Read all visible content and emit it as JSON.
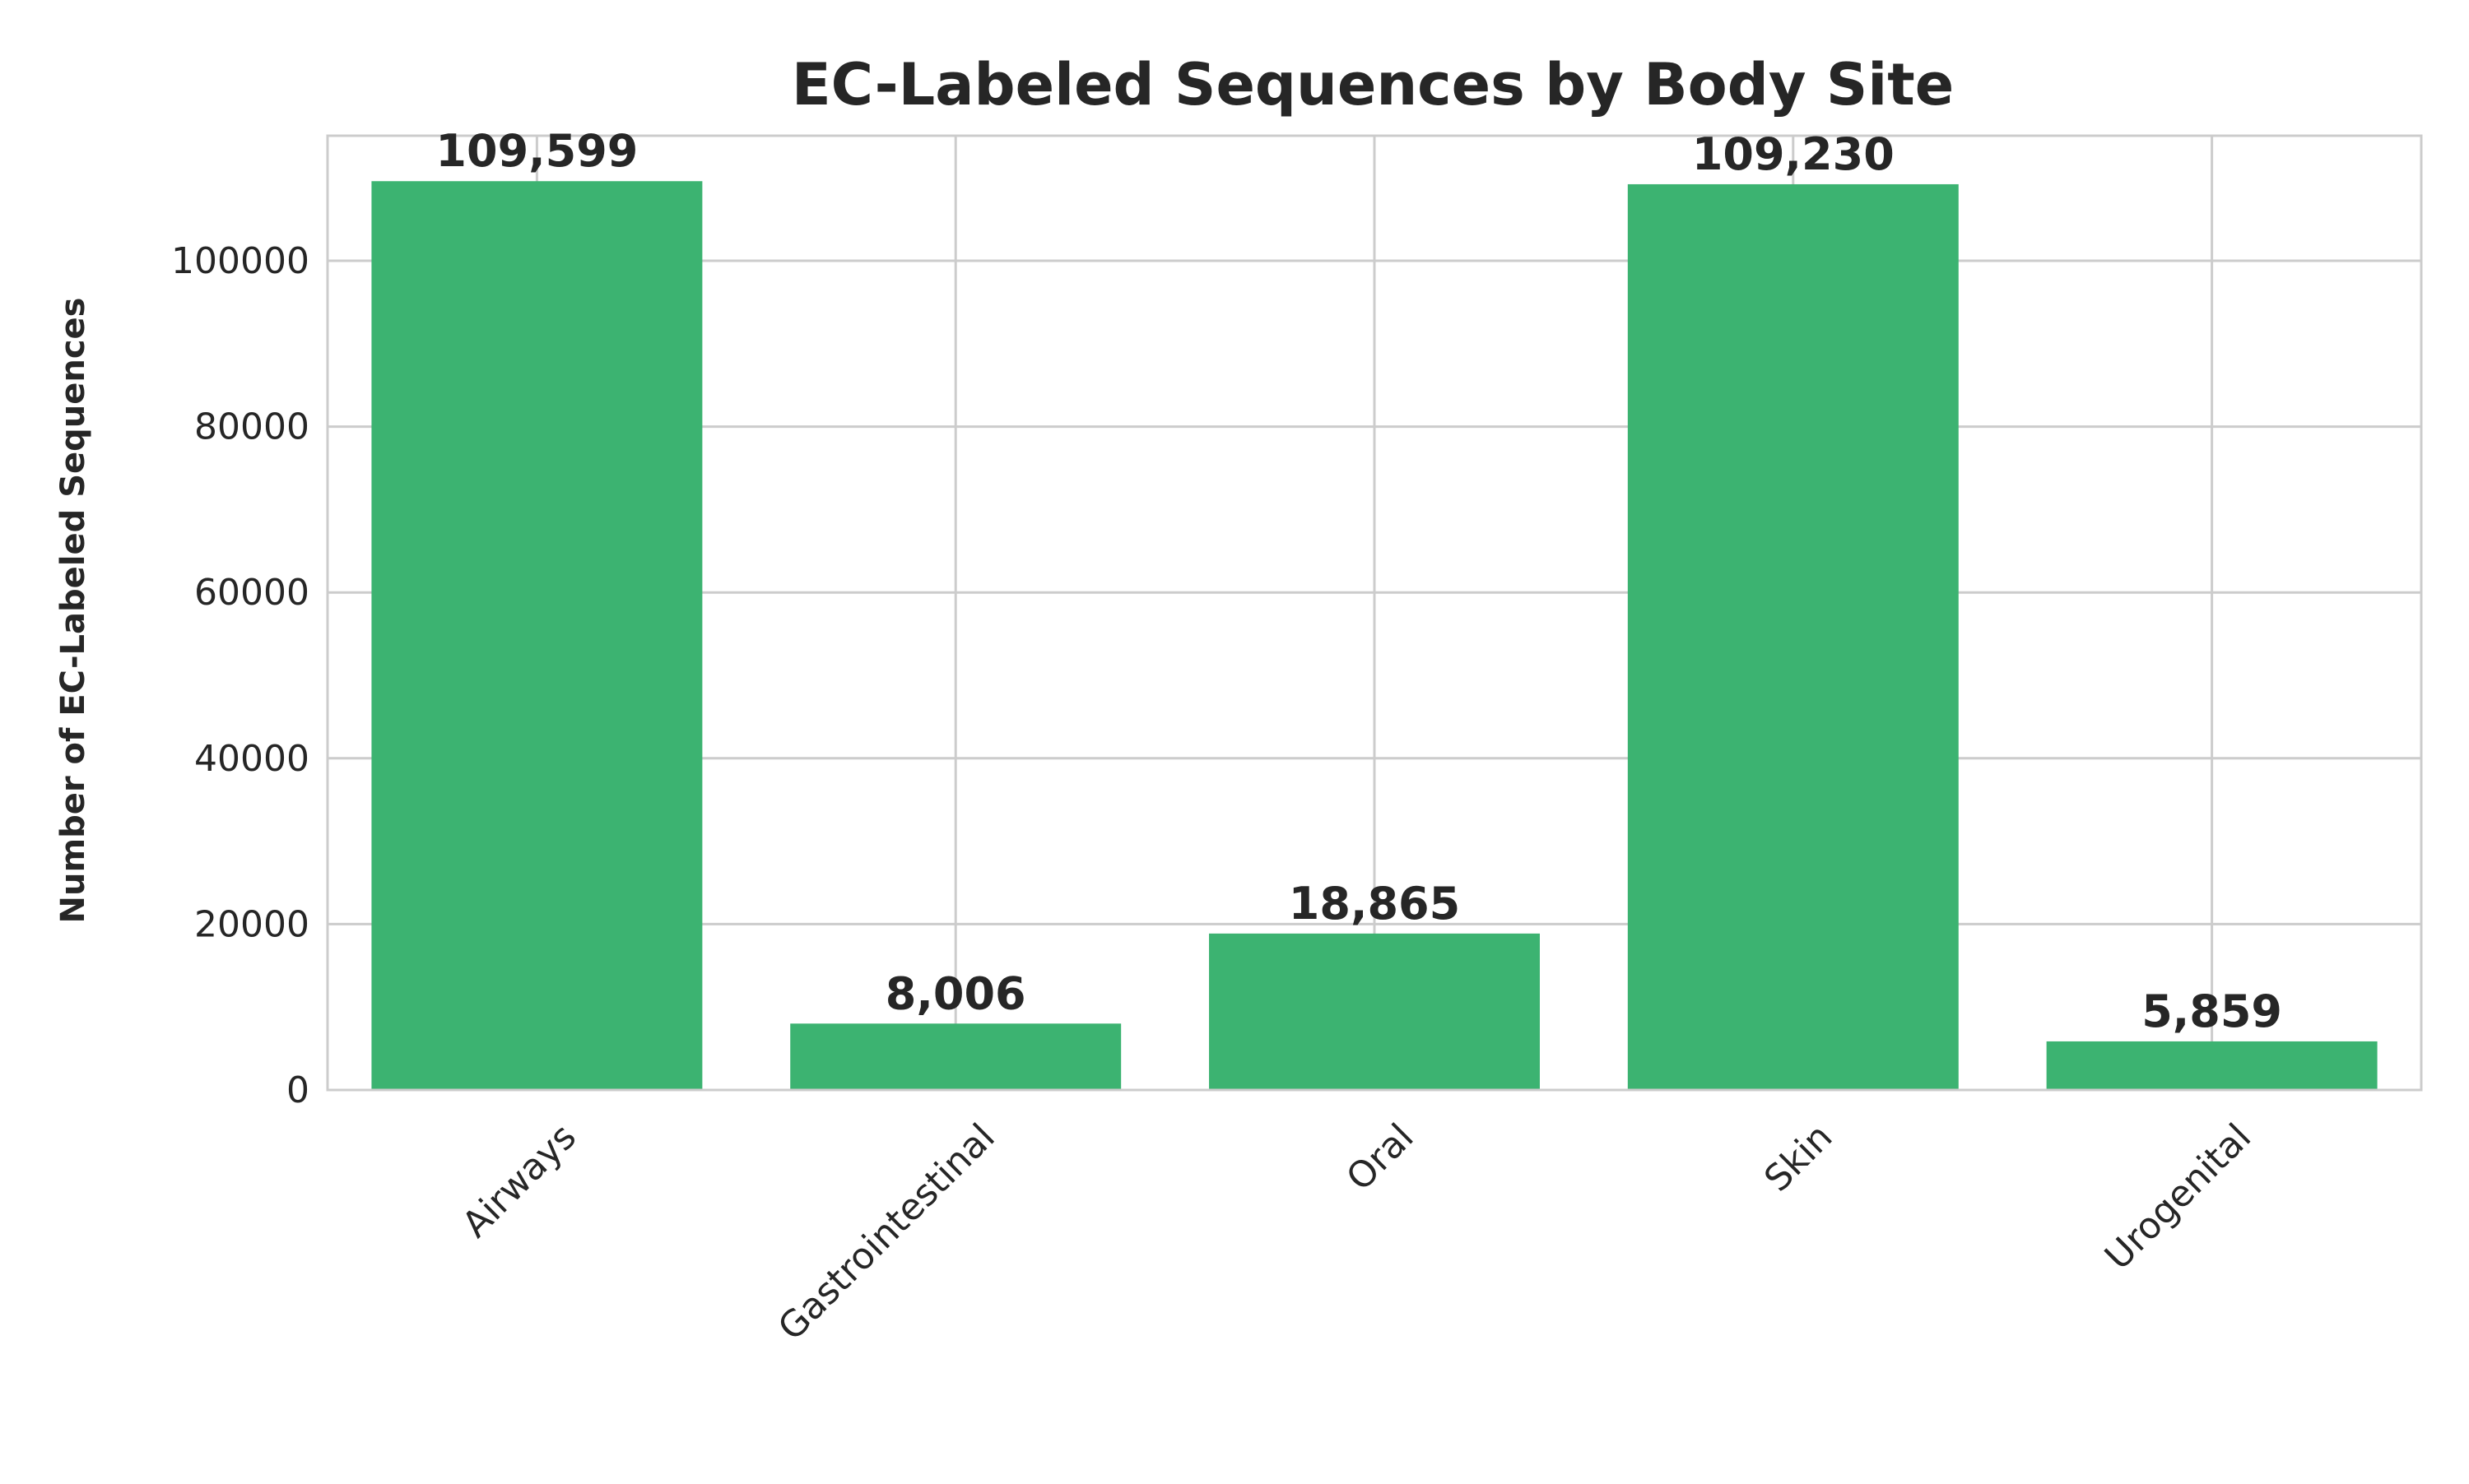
{
  "chart_data": {
    "type": "bar",
    "title": "EC-Labeled Sequences by Body Site",
    "xlabel": "",
    "ylabel": "Number of EC-Labeled Sequences",
    "categories": [
      "Airways",
      "Gastrointestinal",
      "Oral",
      "Skin",
      "Urogenital"
    ],
    "values": [
      109599,
      8006,
      18865,
      109230,
      5859
    ],
    "value_labels": [
      "109,599",
      "8,006",
      "18,865",
      "109,230",
      "5,859"
    ],
    "ylim": [
      0,
      115079
    ],
    "yticks": [
      0,
      20000,
      40000,
      60000,
      80000,
      100000
    ],
    "ytick_labels": [
      "0",
      "20000",
      "40000",
      "60000",
      "80000",
      "100000"
    ],
    "grid": true,
    "bar_color": "#3cb371"
  }
}
